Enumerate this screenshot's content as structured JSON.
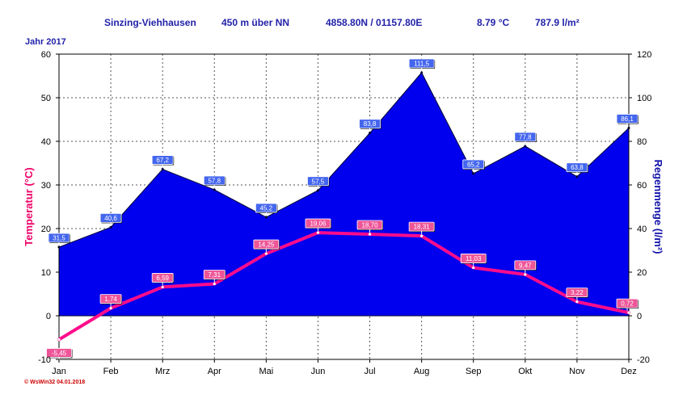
{
  "header": {
    "station": "Sinzing-Viehhausen",
    "altitude": "450 m über NN",
    "coordinates": "4858.80N / 01157.80E",
    "mean_temp": "8.79 °C",
    "total_rain": "787.9 l/m²",
    "year": "Jahr  2017"
  },
  "footer": {
    "watermark": "© WsWin32  04.01.2018"
  },
  "colors": {
    "rain_fill": "#0000ee",
    "temp_line": "#ff0c8c",
    "left_axis": "#ee0066",
    "right_axis": "#1111aa",
    "grid": "#555555"
  },
  "chart_data": {
    "type": "area+line",
    "categories": [
      "Jan",
      "Feb",
      "Mrz",
      "Apr",
      "Mai",
      "Jun",
      "Jul",
      "Aug",
      "Sep",
      "Okt",
      "Nov",
      "Dez"
    ],
    "series": [
      {
        "name": "Regenmenge",
        "axis": "right",
        "type": "area",
        "values": [
          31.5,
          40.6,
          67.2,
          57.8,
          45.2,
          57.5,
          83.8,
          111.5,
          65.2,
          77.8,
          63.8,
          86.1
        ],
        "labels": [
          "31,5",
          "40,6",
          "67,2",
          "57,8",
          "45,2",
          "57,5",
          "83,8",
          "111,5",
          "65,2",
          "77,8",
          "63,8",
          "86,1"
        ]
      },
      {
        "name": "Temperatur",
        "axis": "left",
        "type": "line",
        "values": [
          -5.45,
          1.74,
          6.59,
          7.31,
          14.25,
          19.06,
          18.7,
          18.31,
          11.03,
          9.47,
          3.22,
          0.72
        ],
        "labels": [
          "-5,45",
          "1,74",
          "6,59",
          "7,31",
          "14,25",
          "19,06",
          "18,70",
          "18,31",
          "11,03",
          "9,47",
          "3,22",
          "0,72"
        ]
      }
    ],
    "y_left": {
      "label": "Temperatur  (°C)",
      "range": [
        -10,
        60
      ],
      "ticks": [
        "-10",
        "0",
        "10",
        "20",
        "30",
        "40",
        "50",
        "60"
      ]
    },
    "y_right": {
      "label": "Regenmenge   (l/m²)",
      "range": [
        -20,
        120
      ],
      "ticks": [
        "-20",
        "0",
        "20",
        "40",
        "60",
        "80",
        "100",
        "120"
      ]
    },
    "grid": true
  }
}
